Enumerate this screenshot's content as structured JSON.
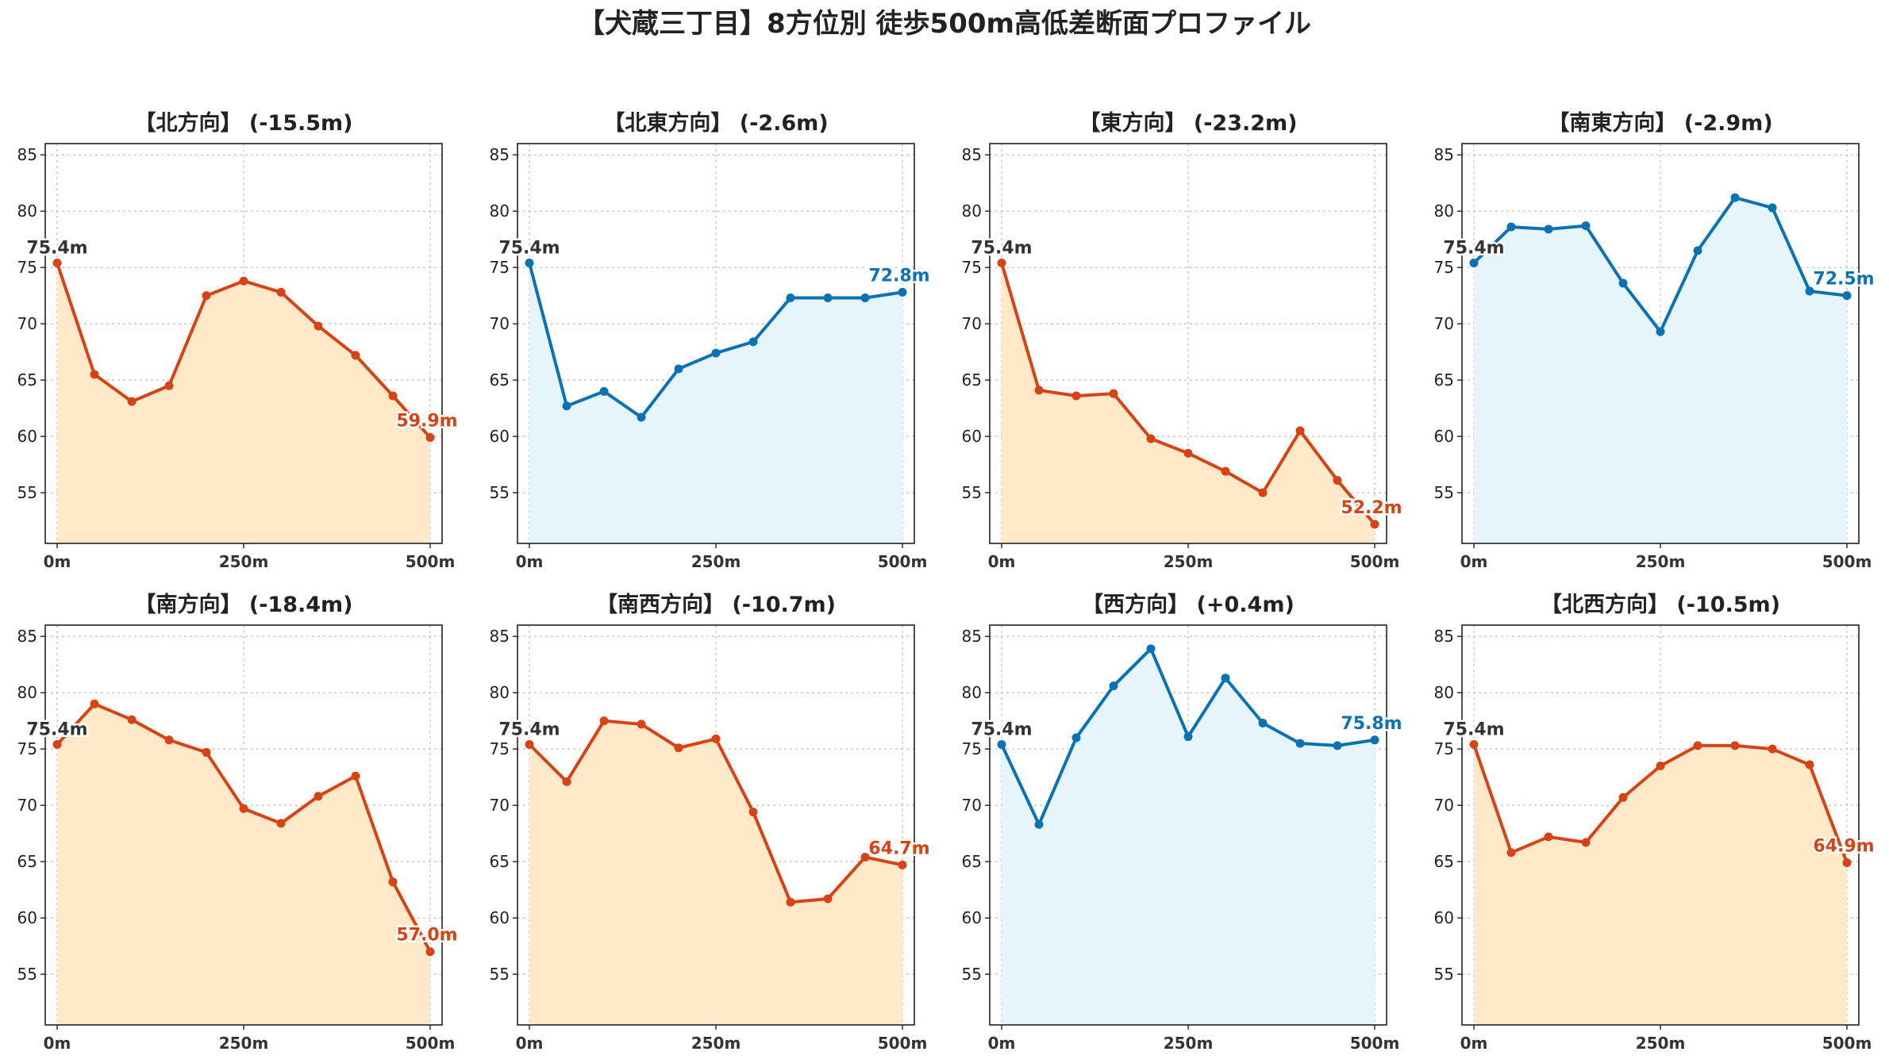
{
  "title": "【犬蔵三丁目】8方位別 徒歩500m高低差断面プロファイル",
  "colors": {
    "down_line": "#d84315",
    "down_fill": "#ffe9c9",
    "up_line": "#0a72b5",
    "up_fill": "#e6f5fb",
    "start_label": "#333333"
  },
  "chart_data": [
    {
      "type": "area",
      "title": "【北方向】 (-15.5m)",
      "trend": "down",
      "x": [
        0,
        50,
        100,
        150,
        200,
        250,
        300,
        350,
        400,
        450,
        500
      ],
      "values": [
        75.4,
        65.5,
        63.1,
        64.5,
        72.5,
        73.8,
        72.8,
        69.8,
        67.2,
        63.6,
        59.9
      ],
      "start_label": "75.4m",
      "end_label": "59.9m",
      "xticks": [
        "0m",
        "250m",
        "500m"
      ],
      "yticks": [
        "55",
        "60",
        "65",
        "70",
        "75",
        "80",
        "85"
      ],
      "xlim": [
        0,
        500
      ],
      "ylim": [
        50.5,
        86
      ],
      "grid": true
    },
    {
      "type": "area",
      "title": "【北東方向】 (-2.6m)",
      "trend": "up",
      "x": [
        0,
        50,
        100,
        150,
        200,
        250,
        300,
        350,
        400,
        450,
        500
      ],
      "values": [
        75.4,
        62.7,
        64.0,
        61.7,
        66.0,
        67.4,
        68.4,
        72.3,
        72.3,
        72.3,
        72.8
      ],
      "start_label": "75.4m",
      "end_label": "72.8m",
      "xticks": [
        "0m",
        "250m",
        "500m"
      ],
      "yticks": [
        "55",
        "60",
        "65",
        "70",
        "75",
        "80",
        "85"
      ],
      "xlim": [
        0,
        500
      ],
      "ylim": [
        50.5,
        86
      ],
      "grid": true
    },
    {
      "type": "area",
      "title": "【東方向】 (-23.2m)",
      "trend": "down",
      "x": [
        0,
        50,
        100,
        150,
        200,
        250,
        300,
        350,
        400,
        450,
        500
      ],
      "values": [
        75.4,
        64.1,
        63.6,
        63.8,
        59.8,
        58.5,
        56.9,
        55.0,
        60.5,
        56.1,
        52.2
      ],
      "start_label": "75.4m",
      "end_label": "52.2m",
      "xticks": [
        "0m",
        "250m",
        "500m"
      ],
      "yticks": [
        "55",
        "60",
        "65",
        "70",
        "75",
        "80",
        "85"
      ],
      "xlim": [
        0,
        500
      ],
      "ylim": [
        50.5,
        86
      ],
      "grid": true
    },
    {
      "type": "area",
      "title": "【南東方向】 (-2.9m)",
      "trend": "up",
      "x": [
        0,
        50,
        100,
        150,
        200,
        250,
        300,
        350,
        400,
        450,
        500
      ],
      "values": [
        75.4,
        78.6,
        78.4,
        78.7,
        73.6,
        69.3,
        76.5,
        81.2,
        80.3,
        72.9,
        72.5
      ],
      "start_label": "75.4m",
      "end_label": "72.5m",
      "xticks": [
        "0m",
        "250m",
        "500m"
      ],
      "yticks": [
        "55",
        "60",
        "65",
        "70",
        "75",
        "80",
        "85"
      ],
      "xlim": [
        0,
        500
      ],
      "ylim": [
        50.5,
        86
      ],
      "grid": true
    },
    {
      "type": "area",
      "title": "【南方向】 (-18.4m)",
      "trend": "down",
      "x": [
        0,
        50,
        100,
        150,
        200,
        250,
        300,
        350,
        400,
        450,
        500
      ],
      "values": [
        75.4,
        79.0,
        77.6,
        75.8,
        74.7,
        69.7,
        68.4,
        70.8,
        72.6,
        63.2,
        57.0
      ],
      "start_label": "75.4m",
      "end_label": "57.0m",
      "xticks": [
        "0m",
        "250m",
        "500m"
      ],
      "yticks": [
        "55",
        "60",
        "65",
        "70",
        "75",
        "80",
        "85"
      ],
      "xlim": [
        0,
        500
      ],
      "ylim": [
        50.5,
        86
      ],
      "grid": true
    },
    {
      "type": "area",
      "title": "【南西方向】 (-10.7m)",
      "trend": "down",
      "x": [
        0,
        50,
        100,
        150,
        200,
        250,
        300,
        350,
        400,
        450,
        500
      ],
      "values": [
        75.4,
        72.1,
        77.5,
        77.2,
        75.1,
        75.9,
        69.4,
        61.4,
        61.7,
        65.4,
        64.7
      ],
      "start_label": "75.4m",
      "end_label": "64.7m",
      "xticks": [
        "0m",
        "250m",
        "500m"
      ],
      "yticks": [
        "55",
        "60",
        "65",
        "70",
        "75",
        "80",
        "85"
      ],
      "xlim": [
        0,
        500
      ],
      "ylim": [
        50.5,
        86
      ],
      "grid": true
    },
    {
      "type": "area",
      "title": "【西方向】 (+0.4m)",
      "trend": "up",
      "x": [
        0,
        50,
        100,
        150,
        200,
        250,
        300,
        350,
        400,
        450,
        500
      ],
      "values": [
        75.4,
        68.3,
        76.0,
        80.6,
        83.9,
        76.1,
        81.3,
        77.3,
        75.5,
        75.3,
        75.8
      ],
      "start_label": "75.4m",
      "end_label": "75.8m",
      "xticks": [
        "0m",
        "250m",
        "500m"
      ],
      "yticks": [
        "55",
        "60",
        "65",
        "70",
        "75",
        "80",
        "85"
      ],
      "xlim": [
        0,
        500
      ],
      "ylim": [
        50.5,
        86
      ],
      "grid": true
    },
    {
      "type": "area",
      "title": "【北西方向】 (-10.5m)",
      "trend": "down",
      "x": [
        0,
        50,
        100,
        150,
        200,
        250,
        300,
        350,
        400,
        450,
        500
      ],
      "values": [
        75.4,
        65.8,
        67.2,
        66.7,
        70.7,
        73.5,
        75.3,
        75.3,
        75.0,
        73.6,
        64.9
      ],
      "start_label": "75.4m",
      "end_label": "64.9m",
      "xticks": [
        "0m",
        "250m",
        "500m"
      ],
      "yticks": [
        "55",
        "60",
        "65",
        "70",
        "75",
        "80",
        "85"
      ],
      "xlim": [
        0,
        500
      ],
      "ylim": [
        50.5,
        86
      ],
      "grid": true
    }
  ]
}
